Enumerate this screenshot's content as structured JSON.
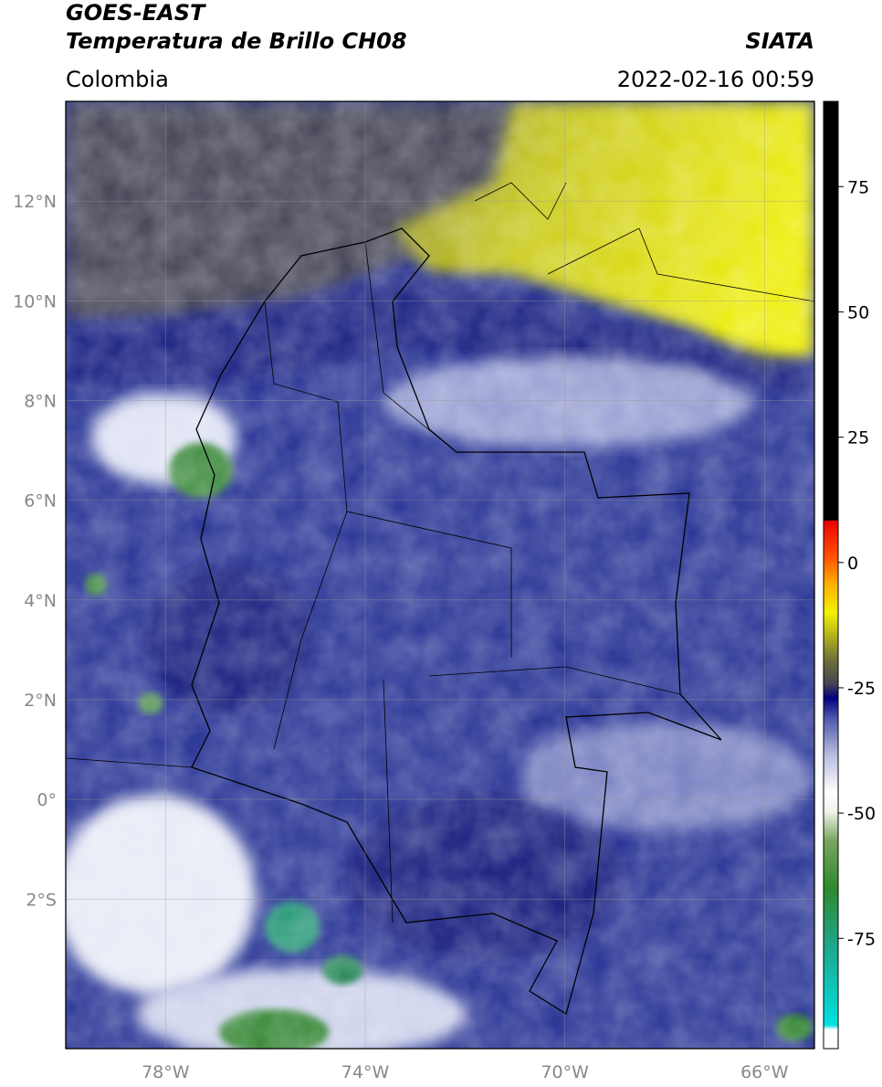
{
  "header": {
    "title_line1": "GOES-EAST",
    "title_line2": "Temperatura de Brillo CH08",
    "source": "SIATA",
    "region": "Colombia",
    "datetime": "2022-02-16 00:59"
  },
  "map": {
    "xlim": [
      -80,
      -65
    ],
    "ylim": [
      -5,
      14
    ],
    "xticks": [
      {
        "value": -78,
        "label": "78°W"
      },
      {
        "value": -74,
        "label": "74°W"
      },
      {
        "value": -70,
        "label": "70°W"
      },
      {
        "value": -66,
        "label": "66°W"
      }
    ],
    "yticks": [
      {
        "value": 12,
        "label": "12°N"
      },
      {
        "value": 10,
        "label": "10°N"
      },
      {
        "value": 8,
        "label": "8°N"
      },
      {
        "value": 6,
        "label": "6°N"
      },
      {
        "value": 4,
        "label": "4°N"
      },
      {
        "value": 2,
        "label": "2°N"
      },
      {
        "value": 0,
        "label": "0°"
      },
      {
        "value": -2,
        "label": "2°S"
      }
    ],
    "grid": true
  },
  "colorbar": {
    "lim": [
      -97,
      92
    ],
    "ticks": [
      75,
      50,
      25,
      0,
      -25,
      -50,
      -75
    ]
  }
}
